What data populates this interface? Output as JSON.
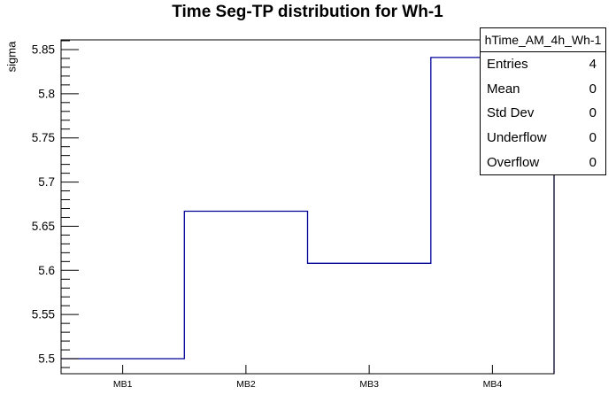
{
  "canvas": {
    "background": "#ffffff"
  },
  "chart_data": {
    "type": "histogram-step",
    "title": "Time Seg-TP distribution for Wh-1",
    "xlabel": "",
    "ylabel": "sigma",
    "categories": [
      "MB1",
      "MB2",
      "MB3",
      "MB4"
    ],
    "values": [
      5.5,
      5.667,
      5.608,
      5.841
    ],
    "ylim": [
      5.483,
      5.861
    ],
    "y_major_ticks": [
      {
        "v": 5.5,
        "label": "5.5"
      },
      {
        "v": 5.55,
        "label": "5.55"
      },
      {
        "v": 5.6,
        "label": "5.6"
      },
      {
        "v": 5.65,
        "label": "5.65"
      },
      {
        "v": 5.7,
        "label": "5.7"
      },
      {
        "v": 5.75,
        "label": "5.75"
      },
      {
        "v": 5.8,
        "label": "5.8"
      },
      {
        "v": 5.85,
        "label": "5.85"
      }
    ],
    "y_minor_tick_step": 0.01,
    "grid": false,
    "legend_position": "none",
    "line_color": "#000099",
    "frame_color": "#000000",
    "text_color": "#000000"
  },
  "stats_box": {
    "header": "hTime_AM_4h_Wh-1",
    "rows": [
      {
        "label": "Entries",
        "value": "4"
      },
      {
        "label": "Mean",
        "value": "0"
      },
      {
        "label": "Std Dev",
        "value": "0"
      },
      {
        "label": "Underflow",
        "value": "0"
      },
      {
        "label": "Overflow",
        "value": "0"
      }
    ]
  }
}
